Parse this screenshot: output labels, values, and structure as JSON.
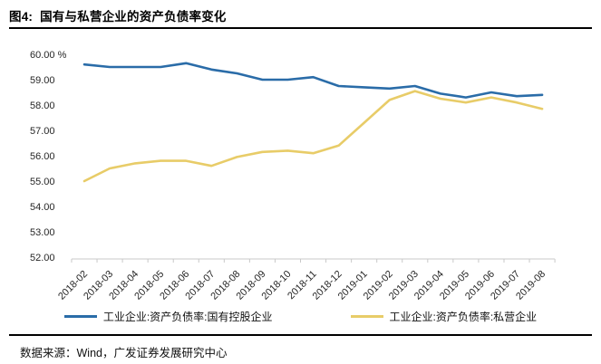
{
  "header": {
    "figure_label": "图4:",
    "title": "国有与私营企业的资产负债率变化"
  },
  "footer": {
    "source_text": "数据来源：Wind，广发证券发展研究中心"
  },
  "colors": {
    "soe_line": "#2A6CA8",
    "private_line": "#E8CC68",
    "axis": "#C9C9C9",
    "rule": "#000000"
  },
  "chart_data": {
    "type": "line",
    "title": "国有与私营企业的资产负债率变化",
    "categories": [
      "2018-02",
      "2018-03",
      "2018-04",
      "2018-05",
      "2018-06",
      "2018-07",
      "2018-08",
      "2018-09",
      "2018-10",
      "2018-11",
      "2018-12",
      "2019-01",
      "2019-02",
      "2019-03",
      "2019-04",
      "2019-05",
      "2019-06",
      "2019-07",
      "2019-08"
    ],
    "series": [
      {
        "name": "工业企业:资产负债率:国有控股企业",
        "color": "#2A6CA8",
        "values": [
          59.6,
          59.5,
          59.5,
          59.5,
          59.65,
          59.4,
          59.25,
          59.0,
          59.0,
          59.1,
          58.75,
          58.7,
          58.65,
          58.75,
          58.45,
          58.3,
          58.5,
          58.35,
          58.4
        ]
      },
      {
        "name": "工业企业:资产负债率:私营企业",
        "color": "#E8CC68",
        "values": [
          55.0,
          55.5,
          55.7,
          55.8,
          55.8,
          55.6,
          55.95,
          56.15,
          56.2,
          56.1,
          56.4,
          57.3,
          58.2,
          58.55,
          58.25,
          58.1,
          58.3,
          58.1,
          57.85
        ]
      }
    ],
    "ylim": [
      52,
      60
    ],
    "ytick_labels": [
      "60.00 %",
      "59.00",
      "58.00",
      "57.00",
      "56.00",
      "55.00",
      "54.00",
      "53.00",
      "52.00"
    ],
    "grid": false,
    "legend_position": "bottom"
  }
}
